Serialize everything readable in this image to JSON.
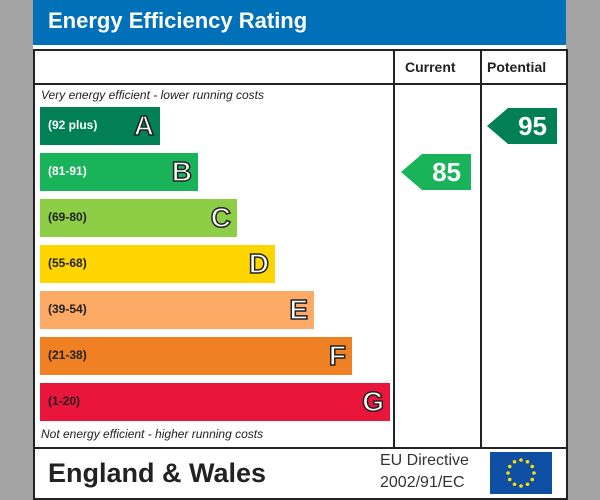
{
  "title": "Energy Efficiency Rating",
  "columns": {
    "current": "Current",
    "potential": "Potential"
  },
  "notes": {
    "top": "Very energy efficient - lower running costs",
    "bottom": "Not energy efficient - higher running costs"
  },
  "footer": {
    "region": "England & Wales",
    "directive_line1": "EU Directive",
    "directive_line2": "2002/91/EC"
  },
  "chart_data": {
    "type": "bar",
    "categories": [
      "A",
      "B",
      "C",
      "D",
      "E",
      "F",
      "G"
    ],
    "bands": [
      {
        "letter": "A",
        "range": "(92 plus)",
        "color": "#008054",
        "text": "#fff"
      },
      {
        "letter": "B",
        "range": "(81-91)",
        "color": "#19b459",
        "text": "#fff"
      },
      {
        "letter": "C",
        "range": "(69-80)",
        "color": "#8dce46",
        "text": "#222"
      },
      {
        "letter": "D",
        "range": "(55-68)",
        "color": "#ffd500",
        "text": "#222"
      },
      {
        "letter": "E",
        "range": "(39-54)",
        "color": "#fcaa65",
        "text": "#222"
      },
      {
        "letter": "F",
        "range": "(21-38)",
        "color": "#ef8023",
        "text": "#222"
      },
      {
        "letter": "G",
        "range": "(1-20)",
        "color": "#e9153b",
        "text": "#222"
      }
    ],
    "current": {
      "value": 85,
      "band": "B",
      "color": "#19b459"
    },
    "potential": {
      "value": 95,
      "band": "A",
      "color": "#008054"
    }
  }
}
